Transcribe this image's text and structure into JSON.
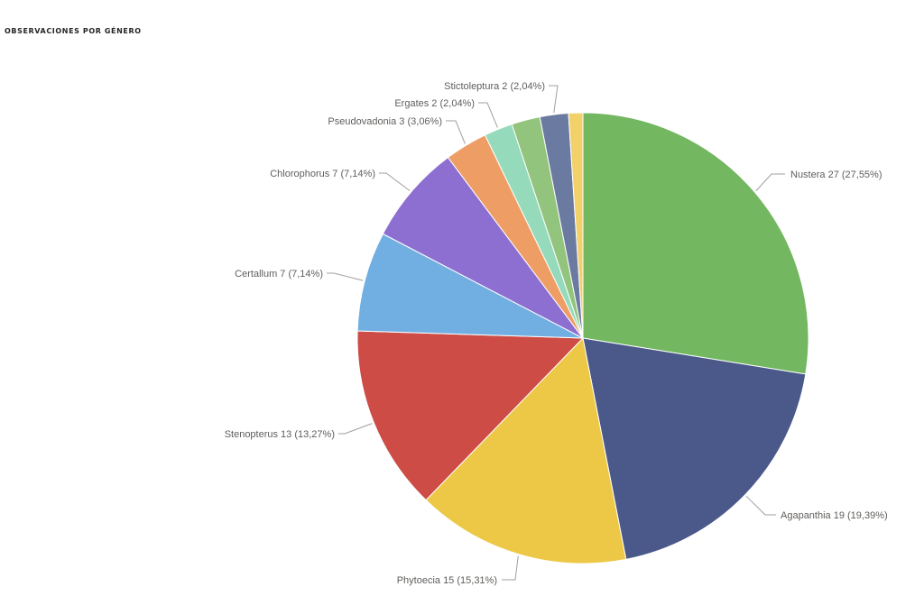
{
  "chart_title": "OBSERVACIONES POR GÉNERO",
  "chart_data": {
    "type": "pie",
    "title": "OBSERVACIONES POR GÉNERO",
    "slices": [
      {
        "name": "Nustera",
        "value": 27,
        "percent": "27,55%",
        "label": "Nustera 27 (27,55%)",
        "color": "#73b761"
      },
      {
        "name": "Agapanthia",
        "value": 19,
        "percent": "19,39%",
        "label": "Agapanthia 19 (19,39%)",
        "color": "#4a588a"
      },
      {
        "name": "Phytoecia",
        "value": 15,
        "percent": "15,31%",
        "label": "Phytoecia 15 (15,31%)",
        "color": "#ecc846"
      },
      {
        "name": "Stenopterus",
        "value": 13,
        "percent": "13,27%",
        "label": "Stenopterus 13 (13,27%)",
        "color": "#cd4c46"
      },
      {
        "name": "Certallum",
        "value": 7,
        "percent": "7,14%",
        "label": "Certallum 7 (7,14%)",
        "color": "#71afe2"
      },
      {
        "name": "Chlorophorus",
        "value": 7,
        "percent": "7,14%",
        "label": "Chlorophorus 7 (7,14%)",
        "color": "#8d6fd1"
      },
      {
        "name": "Pseudovadonia",
        "value": 3,
        "percent": "3,06%",
        "label": "Pseudovadonia 3 (3,06%)",
        "color": "#ee9e64"
      },
      {
        "name": "Ergates",
        "value": 2,
        "percent": "2,04%",
        "label": "Ergates 2 (2,04%)",
        "color": "#95dabb"
      },
      {
        "name": "unlabeled-1",
        "value": 2,
        "percent": "",
        "label": "",
        "color": "#93c47d"
      },
      {
        "name": "Stictoleptura",
        "value": 2,
        "percent": "2,04%",
        "label": "Stictoleptura 2 (2,04%)",
        "color": "#6b7aa1"
      },
      {
        "name": "unlabeled-2",
        "value": 1,
        "percent": "",
        "label": "",
        "color": "#f2d16b"
      }
    ],
    "start_angle": "12 o'clock",
    "direction": "clockwise",
    "legend": "none",
    "labels": "outside with leader lines"
  }
}
